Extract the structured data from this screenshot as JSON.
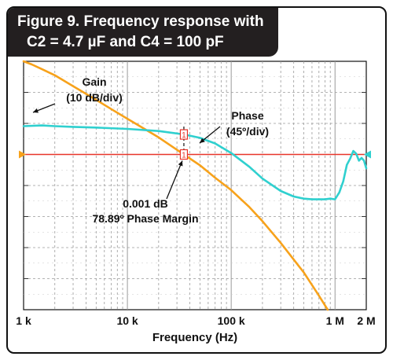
{
  "figure": {
    "title_line1": "Figure 9. Frequency response with",
    "title_line2": "C2 = 4.7 µF and C4 = 100 pF"
  },
  "colors": {
    "gain": "#f7a21b",
    "phase": "#2fd0cf",
    "reference": "#e8352a",
    "marker": "#e8352a",
    "grid": "#9a9a9a",
    "title_bg": "#231f20"
  },
  "chart_data": {
    "type": "line",
    "x_scale": "log",
    "xlim": [
      1000,
      2000000
    ],
    "xlabel": "Frequency (Hz)",
    "ylabel": "",
    "x_ticks": [
      {
        "value": 1000,
        "label": "1 k"
      },
      {
        "value": 10000,
        "label": "10 k"
      },
      {
        "value": 100000,
        "label": "100 k"
      },
      {
        "value": 1000000,
        "label": "1 M"
      },
      {
        "value": 2000000,
        "label": "2 M"
      }
    ],
    "grid": true,
    "series": [
      {
        "name": "Gain",
        "unit_per_div": "10 dB/div",
        "y_units": "dB",
        "ylim": [
          -50,
          30
        ],
        "x": [
          1000,
          1200,
          1500,
          2000,
          3000,
          5000,
          7000,
          10000,
          15000,
          20000,
          30000,
          35000,
          50000,
          70000,
          100000,
          150000,
          200000,
          300000,
          500000,
          700000,
          850000
        ],
        "y": [
          30,
          29,
          27.5,
          25.5,
          22,
          17.6,
          14.6,
          11.5,
          8,
          5.5,
          1.5,
          0,
          -3.5,
          -7.5,
          -11.5,
          -17,
          -21.5,
          -28.5,
          -38,
          -45.5,
          -50
        ]
      },
      {
        "name": "Phase",
        "unit_per_div": "45º/div",
        "y_units": "deg",
        "ylim": [
          -160,
          200
        ],
        "x": [
          1000,
          1500,
          2000,
          3000,
          5000,
          10000,
          20000,
          35000,
          50000,
          70000,
          100000,
          150000,
          200000,
          300000,
          400000,
          500000,
          600000,
          700000,
          800000,
          900000,
          1000000,
          1100000,
          1200000,
          1300000,
          1400000,
          1500000,
          1600000,
          1700000,
          1800000,
          1900000,
          2000000
        ],
        "y": [
          106,
          107,
          106,
          105,
          104,
          102,
          99,
          94,
          89,
          81,
          67,
          47,
          30,
          12,
          4,
          1,
          0,
          0,
          0,
          1,
          0,
          10,
          26,
          50,
          59,
          70,
          66,
          56,
          60,
          56,
          45
        ]
      }
    ],
    "reference_line": {
      "y_gain_db": 0
    },
    "markers": [
      {
        "x": 35000,
        "series": "Phase",
        "y": 94,
        "label": "1"
      },
      {
        "x": 35000,
        "series": "Gain",
        "y": 0,
        "label": "1"
      }
    ],
    "annotations": [
      {
        "id": "gain",
        "line1": "Gain",
        "line2": "(10 dB/div)"
      },
      {
        "id": "phase",
        "line1": "Phase",
        "line2": "(45º/div)"
      },
      {
        "id": "margin",
        "line1": "0.001 dB",
        "line2": "78.89º Phase Margin"
      }
    ]
  }
}
